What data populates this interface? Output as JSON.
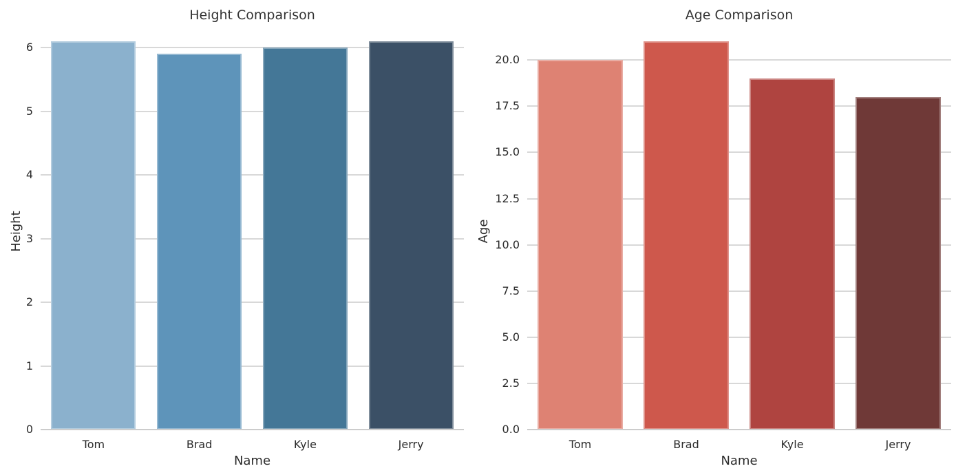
{
  "figure": {
    "background": "#ffffff",
    "text_color": "#2b2b2b",
    "grid_color": "#d8d8d8",
    "axis_line_color": "#cccccc"
  },
  "chart_data": [
    {
      "id": "height",
      "type": "bar",
      "title": "Height Comparison",
      "xlabel": "Name",
      "ylabel": "Height",
      "categories": [
        "Tom",
        "Brad",
        "Kyle",
        "Jerry"
      ],
      "values": [
        6.1,
        5.9,
        6.0,
        6.1
      ],
      "bar_colors": [
        "#8bb1cd",
        "#5e94ba",
        "#447797",
        "#3b5066"
      ],
      "yticks": [
        0,
        1,
        2,
        3,
        4,
        5,
        6
      ],
      "ytick_labels": [
        "0",
        "1",
        "2",
        "3",
        "4",
        "5",
        "6"
      ],
      "ylim": [
        0,
        6.24
      ],
      "grid": true,
      "legend": null
    },
    {
      "id": "age",
      "type": "bar",
      "title": "Age Comparison",
      "xlabel": "Name",
      "ylabel": "Age",
      "categories": [
        "Tom",
        "Brad",
        "Kyle",
        "Jerry"
      ],
      "values": [
        20.0,
        21.0,
        19.0,
        18.0
      ],
      "bar_colors": [
        "#de8273",
        "#ce584c",
        "#af4440",
        "#6f3937"
      ],
      "yticks": [
        0,
        2.5,
        5,
        7.5,
        10,
        12.5,
        15,
        17.5,
        20
      ],
      "ytick_labels": [
        "0.0",
        "2.5",
        "5.0",
        "7.5",
        "10.0",
        "12.5",
        "15.0",
        "17.5",
        "20.0"
      ],
      "ylim": [
        0,
        21.5
      ],
      "grid": true,
      "legend": null
    }
  ]
}
